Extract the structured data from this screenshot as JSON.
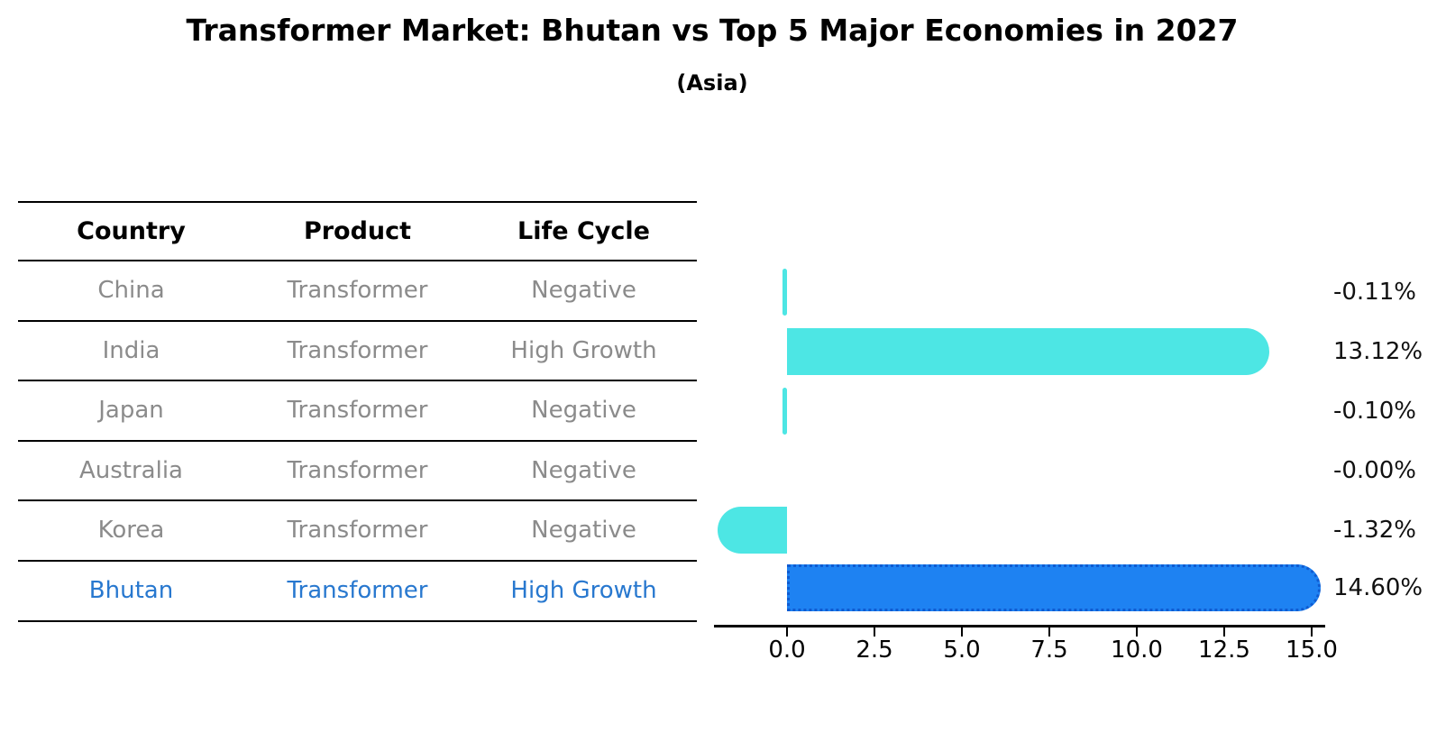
{
  "title": "Transformer Market: Bhutan vs Top 5 Major Economies in 2027",
  "subtitle": "(Asia)",
  "table": {
    "headers": [
      "Country",
      "Product",
      "Life Cycle"
    ],
    "rows": [
      {
        "country": "China",
        "product": "Transformer",
        "life_cycle": "Negative",
        "highlight": false
      },
      {
        "country": "India",
        "product": "Transformer",
        "life_cycle": "High Growth",
        "highlight": false
      },
      {
        "country": "Japan",
        "product": "Transformer",
        "life_cycle": "Negative",
        "highlight": false
      },
      {
        "country": "Australia",
        "product": "Transformer",
        "life_cycle": "Negative",
        "highlight": false
      },
      {
        "country": "Korea",
        "product": "Transformer",
        "life_cycle": "Negative",
        "highlight": false
      },
      {
        "country": "Bhutan",
        "product": "Transformer",
        "life_cycle": "High Growth",
        "highlight": true
      }
    ]
  },
  "chart_data": {
    "type": "bar",
    "orientation": "horizontal",
    "title": "Transformer Market: Bhutan vs Top 5 Major Economies in 2027",
    "subtitle": "(Asia)",
    "categories": [
      "China",
      "India",
      "Japan",
      "Australia",
      "Korea",
      "Bhutan"
    ],
    "values": [
      -0.11,
      13.12,
      -0.1,
      -0.0,
      -1.32,
      14.6
    ],
    "value_labels": [
      "-0.11%",
      "13.12%",
      "-0.10%",
      "-0.00%",
      "-1.32%",
      "14.60%"
    ],
    "highlight_index": 5,
    "xlim": [
      0,
      15
    ],
    "x_ticks": [
      "0.0",
      "2.5",
      "5.0",
      "7.5",
      "10.0",
      "12.5",
      "15.0"
    ],
    "x_tick_step": 2.5,
    "grid": false,
    "legend": false,
    "colors": {
      "default_bar": "#4de6e4",
      "highlight_bar": "#1e82f2",
      "highlight_border": "#0f5bd1",
      "highlight_text": "#2878cf",
      "row_text": "#8b8b8b",
      "axis": "#000000"
    }
  }
}
